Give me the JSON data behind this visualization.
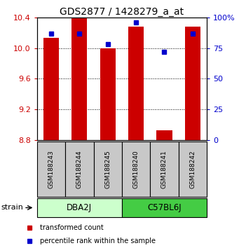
{
  "title": "GDS2877 / 1428279_a_at",
  "samples": [
    "GSM188243",
    "GSM188244",
    "GSM188245",
    "GSM188240",
    "GSM188241",
    "GSM188242"
  ],
  "bar_bottom": 8.8,
  "bar_values": [
    10.13,
    10.4,
    10.0,
    10.28,
    8.93,
    10.28
  ],
  "percentile_values": [
    87,
    87,
    78,
    96,
    72,
    87
  ],
  "ylim_left": [
    8.8,
    10.4
  ],
  "ylim_right": [
    0,
    100
  ],
  "yticks_left": [
    8.8,
    9.2,
    9.6,
    10.0,
    10.4
  ],
  "yticks_right": [
    0,
    25,
    50,
    75,
    100
  ],
  "bar_color": "#cc0000",
  "percentile_color": "#0000cc",
  "title_fontsize": 10,
  "tick_label_color_left": "#cc0000",
  "tick_label_color_right": "#0000cc",
  "legend_red_label": "transformed count",
  "legend_blue_label": "percentile rank within the sample",
  "strain_label": "strain",
  "sample_box_color": "#c8c8c8",
  "group_info": [
    {
      "label": "DBA2J",
      "start": 0,
      "end": 3,
      "color": "#ccffcc"
    },
    {
      "label": "C57BL6J",
      "start": 3,
      "end": 6,
      "color": "#44cc44"
    }
  ],
  "bg_color": "#ffffff"
}
